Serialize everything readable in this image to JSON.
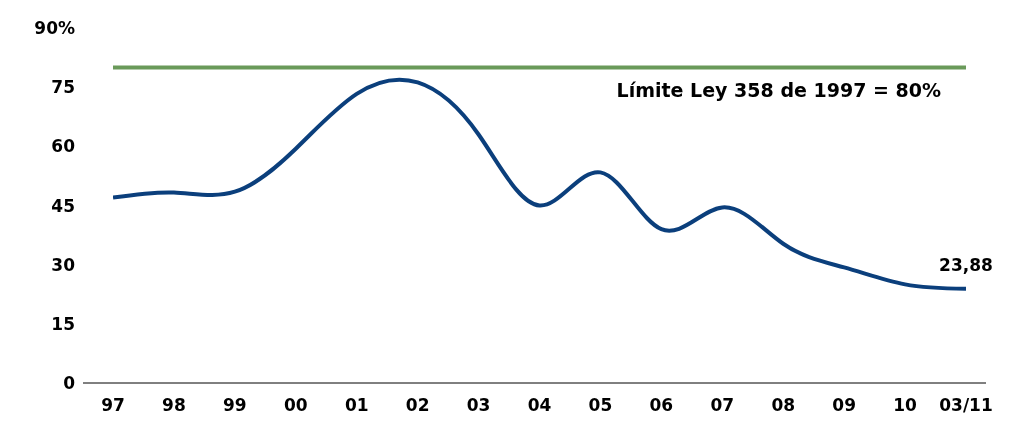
{
  "chart_data": {
    "type": "line",
    "categories": [
      "97",
      "98",
      "99",
      "00",
      "01",
      "02",
      "03",
      "04",
      "05",
      "06",
      "07",
      "08",
      "09",
      "10",
      "03/11"
    ],
    "series": [
      {
        "color": "#0b3f7c",
        "values": [
          47,
          48.3,
          48.5,
          59.4,
          73.3,
          76.2,
          63,
          45,
          53.4,
          39,
          44.5,
          35.3,
          29.3,
          25,
          23.88
        ],
        "value_labels": [
          null,
          null,
          null,
          null,
          null,
          null,
          null,
          null,
          null,
          null,
          null,
          null,
          null,
          null,
          "23,88"
        ]
      }
    ],
    "ylim": [
      0,
      90
    ],
    "yticks": [
      0,
      15,
      30,
      45,
      60,
      75,
      {
        "value": 90,
        "label": "90%"
      }
    ],
    "grid": false,
    "legend": false,
    "marker": "none",
    "line_style": "solid",
    "ref_lines": [
      {
        "axis": "y",
        "value": 80,
        "label": "Límite Ley 358 de 1997 = 80%",
        "color": "#6a9a5a"
      }
    ]
  }
}
